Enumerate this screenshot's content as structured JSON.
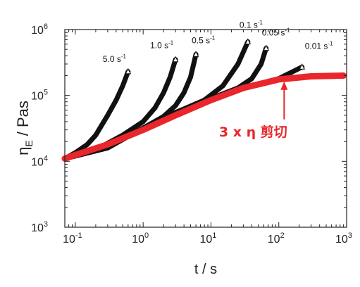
{
  "chart_data": {
    "type": "line",
    "xscale": "log",
    "yscale": "log",
    "xlim": [
      0.07,
      1000
    ],
    "ylim": [
      1000,
      1000000
    ],
    "x_ticks": [
      {
        "value": 0.1,
        "base": "10",
        "exp": "-1"
      },
      {
        "value": 1,
        "base": "10",
        "exp": "0"
      },
      {
        "value": 10,
        "base": "10",
        "exp": "1"
      },
      {
        "value": 100,
        "base": "10",
        "exp": "2"
      },
      {
        "value": 1000,
        "base": "10",
        "exp": "3"
      }
    ],
    "y_ticks": [
      {
        "value": 1000,
        "base": "10",
        "exp": "3"
      },
      {
        "value": 10000,
        "base": "10",
        "exp": "4"
      },
      {
        "value": 100000,
        "base": "10",
        "exp": "5"
      },
      {
        "value": 1000000,
        "base": "10",
        "exp": "6"
      }
    ],
    "xlabel": "t / s",
    "ylabel": {
      "main": "η",
      "sub": "E",
      "rest": " / Pas"
    },
    "series": [
      {
        "name": "5.0 s⁻¹",
        "label_base": "5.0 s",
        "label_exp": "-1",
        "color": "#111111",
        "x": [
          0.07,
          0.1,
          0.15,
          0.2,
          0.3,
          0.4,
          0.5,
          0.6
        ],
        "y": [
          11000,
          13500,
          18000,
          25000,
          50000,
          85000,
          140000,
          230000
        ]
      },
      {
        "name": "1.0 s⁻¹",
        "label_base": "1.0 s",
        "label_exp": "-1",
        "color": "#111111",
        "x": [
          0.07,
          0.2,
          0.5,
          1,
          1.5,
          2,
          2.5,
          3
        ],
        "y": [
          11000,
          15000,
          25000,
          40000,
          65000,
          110000,
          190000,
          350000
        ]
      },
      {
        "name": "0.5 s⁻¹",
        "label_base": "0.5 s",
        "label_exp": "-1",
        "color": "#111111",
        "x": [
          0.07,
          0.3,
          1,
          2,
          3,
          4,
          5,
          6
        ],
        "y": [
          11000,
          16000,
          32000,
          48000,
          70000,
          110000,
          190000,
          420000
        ]
      },
      {
        "name": "0.1 s⁻¹",
        "label_base": "0.1 s",
        "label_exp": "-1",
        "color": "#111111",
        "x": [
          0.07,
          0.3,
          1,
          3,
          8,
          15,
          25,
          35
        ],
        "y": [
          11000,
          16000,
          32000,
          55000,
          85000,
          140000,
          300000,
          650000
        ]
      },
      {
        "name": "0.05 s⁻¹",
        "label_base": "0.05 s",
        "label_exp": "-1",
        "color": "#111111",
        "x": [
          0.07,
          0.3,
          1,
          3,
          10,
          25,
          40,
          55,
          65
        ],
        "y": [
          11000,
          16000,
          32000,
          55000,
          90000,
          130000,
          180000,
          300000,
          520000
        ]
      },
      {
        "name": "0.01 s⁻¹",
        "label_base": "0.01 s",
        "label_exp": "-1",
        "color": "#111111",
        "x": [
          0.07,
          0.3,
          1,
          3,
          10,
          30,
          100,
          220
        ],
        "y": [
          11000,
          16000,
          32000,
          55000,
          90000,
          130000,
          180000,
          270000
        ]
      },
      {
        "name": "3 x η 剪切",
        "color": "#e8262b",
        "x": [
          0.07,
          0.1,
          0.3,
          1,
          3,
          10,
          30,
          100,
          300,
          900
        ],
        "y": [
          11000,
          12500,
          18000,
          30000,
          50000,
          85000,
          130000,
          175000,
          195000,
          200000
        ]
      }
    ],
    "annotation": {
      "text": "3 x η 剪切",
      "color": "#e8262b",
      "x": 120,
      "y": 180000
    }
  }
}
